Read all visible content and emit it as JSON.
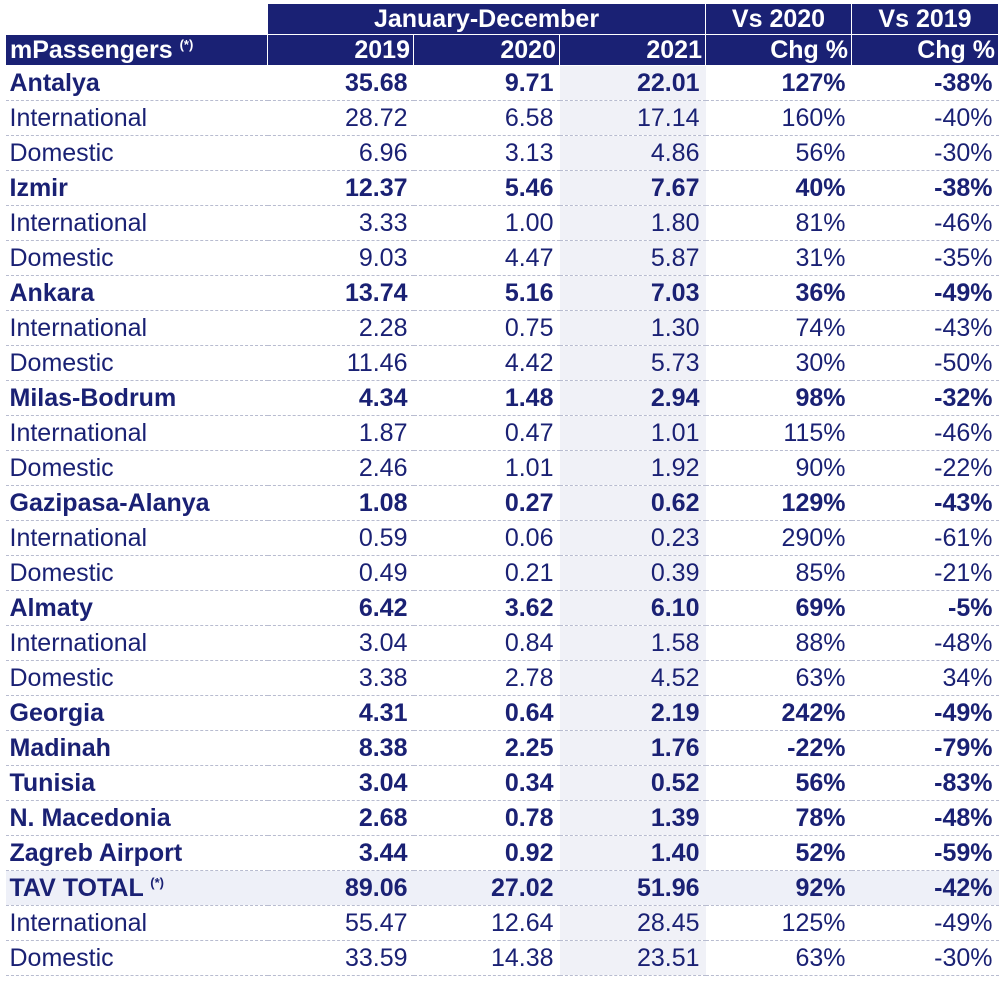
{
  "header": {
    "period": "January-December",
    "vs2020": "Vs 2020",
    "vs2019": "Vs 2019",
    "unit_label": "mPassengers",
    "unit_note": "(*)",
    "col_2019": "2019",
    "col_2020": "2020",
    "col_2021": "2021",
    "chg1": "Chg %",
    "chg2": "Chg %"
  },
  "rows": [
    {
      "label": "Antalya",
      "v2019": "35.68",
      "v2020": "9.71",
      "v2021": "22.01",
      "chg20": "127%",
      "chg19": "-38%",
      "bold": true
    },
    {
      "label": "International",
      "v2019": "28.72",
      "v2020": "6.58",
      "v2021": "17.14",
      "chg20": "160%",
      "chg19": "-40%",
      "bold": false
    },
    {
      "label": "Domestic",
      "v2019": "6.96",
      "v2020": "3.13",
      "v2021": "4.86",
      "chg20": "56%",
      "chg19": "-30%",
      "bold": false
    },
    {
      "label": "Izmir",
      "v2019": "12.37",
      "v2020": "5.46",
      "v2021": "7.67",
      "chg20": "40%",
      "chg19": "-38%",
      "bold": true
    },
    {
      "label": "International",
      "v2019": "3.33",
      "v2020": "1.00",
      "v2021": "1.80",
      "chg20": "81%",
      "chg19": "-46%",
      "bold": false
    },
    {
      "label": "Domestic",
      "v2019": "9.03",
      "v2020": "4.47",
      "v2021": "5.87",
      "chg20": "31%",
      "chg19": "-35%",
      "bold": false
    },
    {
      "label": "Ankara",
      "v2019": "13.74",
      "v2020": "5.16",
      "v2021": "7.03",
      "chg20": "36%",
      "chg19": "-49%",
      "bold": true
    },
    {
      "label": "International",
      "v2019": "2.28",
      "v2020": "0.75",
      "v2021": "1.30",
      "chg20": "74%",
      "chg19": "-43%",
      "bold": false
    },
    {
      "label": "Domestic",
      "v2019": "11.46",
      "v2020": "4.42",
      "v2021": "5.73",
      "chg20": "30%",
      "chg19": "-50%",
      "bold": false
    },
    {
      "label": "Milas-Bodrum",
      "v2019": "4.34",
      "v2020": "1.48",
      "v2021": "2.94",
      "chg20": "98%",
      "chg19": "-32%",
      "bold": true
    },
    {
      "label": "International",
      "v2019": "1.87",
      "v2020": "0.47",
      "v2021": "1.01",
      "chg20": "115%",
      "chg19": "-46%",
      "bold": false
    },
    {
      "label": "Domestic",
      "v2019": "2.46",
      "v2020": "1.01",
      "v2021": "1.92",
      "chg20": "90%",
      "chg19": "-22%",
      "bold": false
    },
    {
      "label": "Gazipasa-Alanya",
      "v2019": "1.08",
      "v2020": "0.27",
      "v2021": "0.62",
      "chg20": "129%",
      "chg19": "-43%",
      "bold": true
    },
    {
      "label": "International",
      "v2019": "0.59",
      "v2020": "0.06",
      "v2021": "0.23",
      "chg20": "290%",
      "chg19": "-61%",
      "bold": false
    },
    {
      "label": "Domestic",
      "v2019": "0.49",
      "v2020": "0.21",
      "v2021": "0.39",
      "chg20": "85%",
      "chg19": "-21%",
      "bold": false
    },
    {
      "label": "Almaty",
      "v2019": "6.42",
      "v2020": "3.62",
      "v2021": "6.10",
      "chg20": "69%",
      "chg19": "-5%",
      "bold": true
    },
    {
      "label": "International",
      "v2019": "3.04",
      "v2020": "0.84",
      "v2021": "1.58",
      "chg20": "88%",
      "chg19": "-48%",
      "bold": false
    },
    {
      "label": "Domestic",
      "v2019": "3.38",
      "v2020": "2.78",
      "v2021": "4.52",
      "chg20": "63%",
      "chg19": "34%",
      "bold": false
    },
    {
      "label": "Georgia",
      "v2019": "4.31",
      "v2020": "0.64",
      "v2021": "2.19",
      "chg20": "242%",
      "chg19": "-49%",
      "bold": true
    },
    {
      "label": "Madinah",
      "v2019": "8.38",
      "v2020": "2.25",
      "v2021": "1.76",
      "chg20": "-22%",
      "chg19": "-79%",
      "bold": true
    },
    {
      "label": "Tunisia",
      "v2019": "3.04",
      "v2020": "0.34",
      "v2021": "0.52",
      "chg20": "56%",
      "chg19": "-83%",
      "bold": true
    },
    {
      "label": "N. Macedonia",
      "v2019": "2.68",
      "v2020": "0.78",
      "v2021": "1.39",
      "chg20": "78%",
      "chg19": "-48%",
      "bold": true
    },
    {
      "label": "Zagreb Airport",
      "v2019": "3.44",
      "v2020": "0.92",
      "v2021": "1.40",
      "chg20": "52%",
      "chg19": "-59%",
      "bold": true
    },
    {
      "label": "TAV TOTAL",
      "note": "(*)",
      "v2019": "89.06",
      "v2020": "27.02",
      "v2021": "51.96",
      "chg20": "92%",
      "chg19": "-42%",
      "bold": true,
      "total": true
    },
    {
      "label": "International",
      "v2019": "55.47",
      "v2020": "12.64",
      "v2021": "28.45",
      "chg20": "125%",
      "chg19": "-49%",
      "bold": false
    },
    {
      "label": "Domestic",
      "v2019": "33.59",
      "v2020": "14.38",
      "v2021": "23.51",
      "chg20": "63%",
      "chg19": "-30%",
      "bold": false
    }
  ]
}
